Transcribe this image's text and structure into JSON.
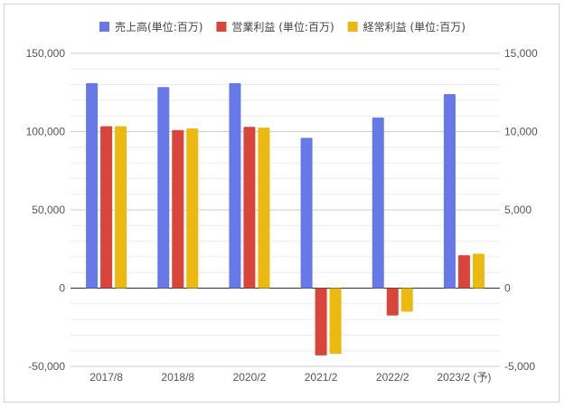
{
  "chart_data": {
    "type": "bar",
    "categories": [
      "2017/8",
      "2018/8",
      "2020/2",
      "2021/2",
      "2022/2",
      "2023/2 (予)"
    ],
    "series": [
      {
        "name": "売上高(単位:百万)",
        "axis": "left",
        "color": "#6779e8",
        "values": [
          131000,
          128500,
          131000,
          96000,
          109000,
          124000
        ]
      },
      {
        "name": "営業利益 (単位:百万)",
        "axis": "right",
        "color": "#d9453a",
        "values": [
          10350,
          10100,
          10300,
          -4300,
          -1750,
          2100
        ]
      },
      {
        "name": "経常利益 (単位:百万)",
        "axis": "right",
        "color": "#ebb90f",
        "values": [
          10350,
          10200,
          10250,
          -4200,
          -1500,
          2200
        ]
      }
    ],
    "y_left": {
      "lim": [
        -50000,
        150000
      ],
      "ticks": [
        "150,000",
        "100,000",
        "50,000",
        "0",
        "-50,000"
      ]
    },
    "y_right": {
      "lim": [
        -5000,
        15000
      ],
      "ticks": [
        "15,000",
        "10,000",
        "5,000",
        "0",
        "-5,000"
      ]
    },
    "grid": true,
    "legend_position": "top"
  }
}
